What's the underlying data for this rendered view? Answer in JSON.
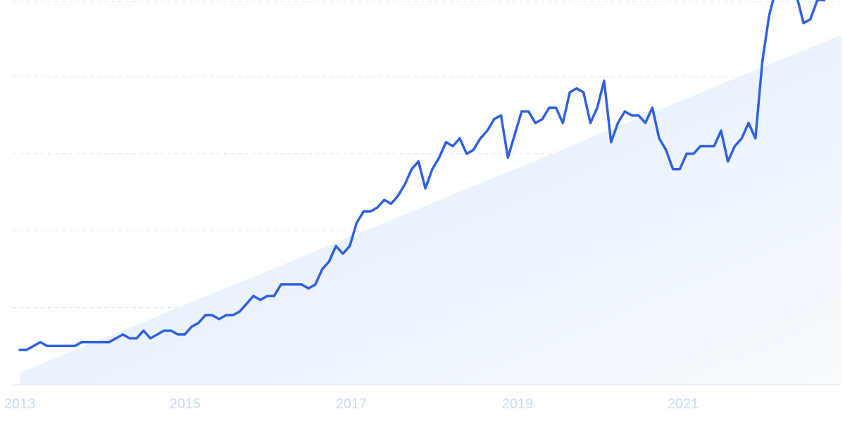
{
  "chart_data": {
    "type": "line",
    "title": "",
    "xlabel": "",
    "ylabel": "",
    "x_tick_labels": [
      "2013",
      "2015",
      "2017",
      "2019",
      "2021"
    ],
    "grid": "horizontal-dashed",
    "trend_fill": true,
    "colors": {
      "line": "#2f60e0",
      "grid": "#dfe7f1",
      "area": "#e6f0fc",
      "tick": "#c9dcf3"
    },
    "series": [
      {
        "x": [
          2013.0,
          2013.083,
          2013.167,
          2013.25,
          2013.333,
          2013.417,
          2013.5,
          2013.583,
          2013.667,
          2013.75,
          2013.833,
          2013.917,
          2014.0,
          2014.083,
          2014.167,
          2014.25,
          2014.333,
          2014.417,
          2014.5,
          2014.583,
          2014.667,
          2014.75,
          2014.833,
          2014.917,
          2015.0,
          2015.083,
          2015.167,
          2015.25,
          2015.333,
          2015.417,
          2015.5,
          2015.583,
          2015.667,
          2015.75,
          2015.833,
          2015.917,
          2016.0,
          2016.083,
          2016.167,
          2016.25,
          2016.333,
          2016.417,
          2016.5,
          2016.583,
          2016.667,
          2016.75,
          2016.833,
          2016.917,
          2017.0,
          2017.083,
          2017.167,
          2017.25,
          2017.333,
          2017.417,
          2017.5,
          2017.583,
          2017.667,
          2017.75,
          2017.833,
          2017.917,
          2018.0,
          2018.083,
          2018.167,
          2018.25,
          2018.333,
          2018.417,
          2018.5,
          2018.583,
          2018.667,
          2018.75,
          2018.833,
          2018.917,
          2019.0,
          2019.083,
          2019.167,
          2019.25,
          2019.333,
          2019.417,
          2019.5,
          2019.583,
          2019.667,
          2019.75,
          2019.833,
          2019.917,
          2020.0,
          2020.083,
          2020.167,
          2020.25,
          2020.333,
          2020.417,
          2020.5,
          2020.583,
          2020.667,
          2020.75,
          2020.833,
          2020.917,
          2021.0,
          2021.083,
          2021.167,
          2021.25,
          2021.333,
          2021.417,
          2021.5,
          2021.583,
          2021.667,
          2021.75,
          2021.833,
          2021.917,
          2022.0,
          2022.083,
          2022.167,
          2022.25,
          2022.333,
          2022.417,
          2022.5,
          2022.583,
          2022.667,
          2022.75,
          2022.833,
          2022.917
        ],
        "y": [
          9,
          9,
          10,
          11,
          10,
          10,
          10,
          10,
          10,
          11,
          11,
          11,
          11,
          11,
          12,
          13,
          12,
          12,
          14,
          12,
          13,
          14,
          14,
          13,
          13,
          15,
          16,
          18,
          18,
          17,
          18,
          18,
          19,
          21,
          23,
          22,
          23,
          23,
          26,
          26,
          26,
          26,
          25,
          26,
          30,
          32,
          36,
          34,
          36,
          42,
          45,
          45,
          46,
          48,
          47,
          49,
          52,
          56,
          58,
          51,
          56,
          59,
          63,
          62,
          64,
          60,
          61,
          64,
          66,
          69,
          70,
          59,
          65,
          71,
          71,
          68,
          69,
          72,
          72,
          68,
          76,
          77,
          76,
          68,
          72,
          79,
          63,
          68,
          71,
          70,
          70,
          68,
          72,
          64,
          61,
          56,
          56,
          60,
          60,
          62,
          62,
          62,
          66,
          58,
          62,
          64,
          68,
          64,
          84,
          96,
          103,
          105,
          102,
          101,
          94,
          95,
          100,
          100,
          106,
          104
        ]
      }
    ],
    "ylim": [
      0,
      100
    ]
  }
}
